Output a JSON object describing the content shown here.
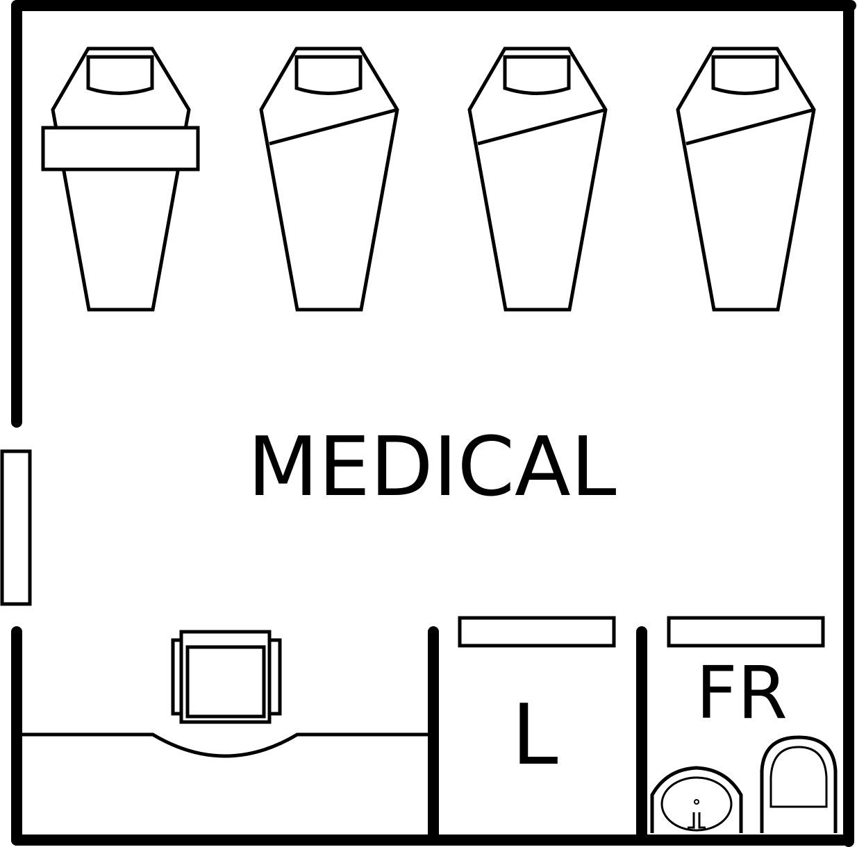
{
  "floor_plan": {
    "room_label": "MEDICAL",
    "closet_label": "L",
    "restroom_label": "FR",
    "beds": [
      {
        "id": "bed-1",
        "has_overlay_bar": true,
        "has_sheet_fold": false
      },
      {
        "id": "bed-2",
        "has_overlay_bar": false,
        "has_sheet_fold": true
      },
      {
        "id": "bed-3",
        "has_overlay_bar": false,
        "has_sheet_fold": true
      },
      {
        "id": "bed-4",
        "has_overlay_bar": false,
        "has_sheet_fold": true
      }
    ],
    "colors": {
      "line": "#000000",
      "background": "#ffffff"
    }
  }
}
